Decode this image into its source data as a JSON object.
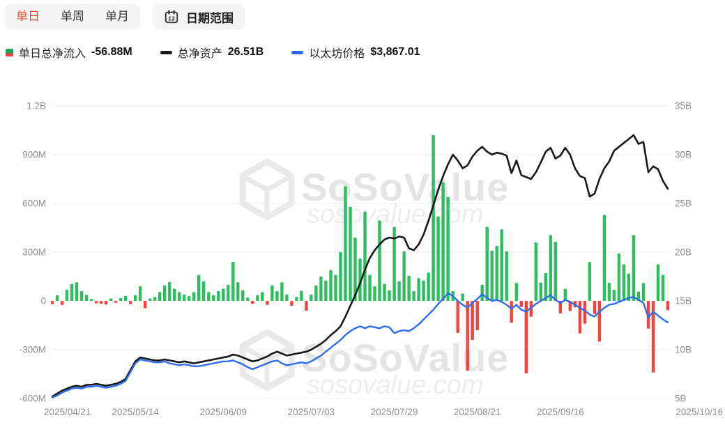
{
  "toolbar": {
    "tabs": [
      {
        "label": "单日",
        "active": true
      },
      {
        "label": "单周",
        "active": false
      },
      {
        "label": "单月",
        "active": false
      }
    ],
    "date_range": {
      "label": "日期范围",
      "icon_day": "12"
    }
  },
  "legend": [
    {
      "name": "单日总净流入",
      "value": "-56.88M"
    },
    {
      "name": "总净资产",
      "value": "26.51B"
    },
    {
      "name": "以太坊价格",
      "value": "$3,867.01"
    }
  ],
  "watermark": {
    "brand": "SoSoValue",
    "domain": "sosovalue.com"
  },
  "colors": {
    "tab_active": "#ee4b2e",
    "bar_up": "#2ebd5f",
    "bar_down": "#f4433c",
    "assets_line": "#17181b",
    "price_line": "#2b6cf0",
    "legend_marker_green": "#1ea45a",
    "legend_marker_red": "#e5423d"
  },
  "chart_data": {
    "type": "combo",
    "x_tick_labels": [
      "2025/04/21",
      "2025/05/14",
      "2025/06/09",
      "2025/07/03",
      "2025/07/29",
      "2025/08/21",
      "2025/09/16",
      "2025/10/16"
    ],
    "x_tick_indices": [
      0,
      17,
      35,
      53,
      70,
      87,
      104,
      126
    ],
    "left_axis": {
      "ticks": [
        "1.2B",
        "900M",
        "600M",
        "300M",
        "0",
        "-300M",
        "-600M"
      ],
      "max": 1200,
      "min": -600,
      "unit": "M"
    },
    "right_axis": {
      "ticks": [
        "35B",
        "30B",
        "25B",
        "20B",
        "15B",
        "10B",
        "5B"
      ],
      "max": 35,
      "min": 5,
      "unit": "B"
    },
    "series": [
      {
        "name": "单日总净流入",
        "type": "bar",
        "axis": "left",
        "unit": "M",
        "color_positive": "#2ebd5f",
        "color_negative": "#f4433c",
        "values": [
          -20,
          35,
          -25,
          70,
          105,
          115,
          60,
          38,
          12,
          -15,
          -18,
          -22,
          15,
          -12,
          18,
          30,
          -20,
          35,
          90,
          -45,
          15,
          25,
          55,
          95,
          117,
          75,
          55,
          40,
          30,
          55,
          160,
          120,
          55,
          35,
          60,
          75,
          100,
          240,
          115,
          65,
          20,
          -18,
          35,
          55,
          -25,
          95,
          60,
          115,
          40,
          -30,
          25,
          62,
          -60,
          40,
          95,
          150,
          125,
          190,
          160,
          300,
          705,
          580,
          390,
          260,
          550,
          160,
          90,
          495,
          105,
          65,
          455,
          120,
          305,
          155,
          60,
          140,
          125,
          175,
          1020,
          520,
          730,
          640,
          60,
          -197,
          45,
          -430,
          -240,
          -180,
          100,
          455,
          310,
          340,
          440,
          305,
          -135,
          110,
          -38,
          -446,
          -97,
          360,
          113,
          172,
          405,
          363,
          -76,
          75,
          -62,
          -40,
          -200,
          -140,
          240,
          -80,
          -250,
          529,
          112,
          70,
          292,
          225,
          167,
          404,
          58,
          110,
          -170,
          -440,
          225,
          160,
          -57
        ]
      },
      {
        "name": "总净资产",
        "type": "line",
        "axis": "right",
        "unit": "B",
        "color": "#17181b",
        "values": [
          5.2,
          5.5,
          5.8,
          6.0,
          6.2,
          6.3,
          6.2,
          6.4,
          6.4,
          6.5,
          6.4,
          6.3,
          6.4,
          6.5,
          6.7,
          7.0,
          7.9,
          8.8,
          9.2,
          9.1,
          9.0,
          8.9,
          8.9,
          9.0,
          8.9,
          8.8,
          8.7,
          8.8,
          8.7,
          8.6,
          8.7,
          8.8,
          8.9,
          9.0,
          9.1,
          9.2,
          9.3,
          9.5,
          9.4,
          9.2,
          9.0,
          8.8,
          8.9,
          9.1,
          9.3,
          9.6,
          9.8,
          9.6,
          9.4,
          9.5,
          9.6,
          9.7,
          9.8,
          10.0,
          10.3,
          10.6,
          11.0,
          11.5,
          11.9,
          12.4,
          13.4,
          14.5,
          15.6,
          16.8,
          18.2,
          19.4,
          20.2,
          20.8,
          21.3,
          21.5,
          21.4,
          21.6,
          21.5,
          20.4,
          20.2,
          20.8,
          21.8,
          23.2,
          24.8,
          26.4,
          27.8,
          29.0,
          30.0,
          29.4,
          28.6,
          28.9,
          29.8,
          30.4,
          30.8,
          30.3,
          30.0,
          30.2,
          30.1,
          29.9,
          28.1,
          29.4,
          27.9,
          27.7,
          27.5,
          28.2,
          29.2,
          30.3,
          30.7,
          29.6,
          29.9,
          30.7,
          30.0,
          28.6,
          27.8,
          27.6,
          25.7,
          26.0,
          27.5,
          28.6,
          29.3,
          30.4,
          30.8,
          31.2,
          31.6,
          32.0,
          31.1,
          31.3,
          28.2,
          28.8,
          28.5,
          27.3,
          26.5
        ]
      },
      {
        "name": "以太坊价格",
        "type": "line",
        "axis": "right",
        "unit": "B",
        "color": "#2b6cf0",
        "values": [
          5.1,
          5.3,
          5.6,
          5.8,
          6.0,
          6.1,
          6.0,
          6.2,
          6.2,
          6.3,
          6.2,
          6.1,
          6.2,
          6.3,
          6.5,
          6.8,
          7.7,
          8.6,
          9.0,
          8.9,
          8.8,
          8.7,
          8.7,
          8.8,
          8.6,
          8.5,
          8.4,
          8.5,
          8.4,
          8.3,
          8.3,
          8.4,
          8.5,
          8.6,
          8.7,
          8.8,
          8.8,
          8.9,
          8.7,
          8.5,
          8.2,
          8.0,
          8.2,
          8.4,
          8.6,
          8.8,
          8.9,
          8.6,
          8.4,
          8.5,
          8.6,
          8.7,
          8.6,
          8.8,
          9.1,
          9.4,
          9.8,
          10.2,
          10.6,
          11.0,
          11.5,
          11.9,
          12.2,
          12.4,
          12.2,
          12.4,
          12.3,
          12.2,
          12.4,
          12.3,
          11.7,
          11.9,
          12.0,
          11.9,
          12.2,
          12.6,
          13.1,
          13.6,
          14.1,
          14.7,
          15.2,
          15.8,
          15.5,
          15.0,
          14.6,
          14.3,
          14.8,
          15.2,
          15.7,
          15.3,
          15.0,
          15.1,
          14.9,
          14.6,
          14.2,
          14.6,
          14.1,
          13.9,
          14.3,
          14.7,
          15.0,
          15.3,
          15.6,
          15.1,
          14.8,
          15.1,
          14.9,
          14.6,
          14.3,
          14.0,
          13.6,
          13.4,
          13.9,
          14.3,
          14.6,
          14.7,
          14.9,
          15.1,
          15.3,
          15.4,
          15.1,
          14.8,
          13.3,
          13.9,
          13.5,
          13.1,
          12.8
        ]
      }
    ]
  }
}
